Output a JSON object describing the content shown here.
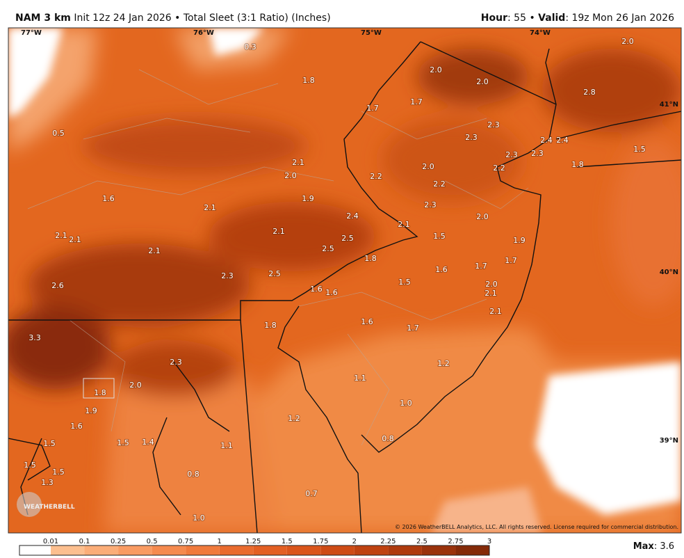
{
  "header": {
    "model": "NAM 3 km",
    "init": "Init 12z 24 Jan 2026",
    "separator": "•",
    "product": "Total Sleet (3:1 Ratio) (Inches)",
    "hour_label": "Hour",
    "hour_value": ": 55",
    "valid_label": "Valid",
    "valid_value": ": 19z Mon 26 Jan 2026"
  },
  "map": {
    "longitudes": [
      "77°W",
      "76°W",
      "75°W",
      "74°W"
    ],
    "latitudes": [
      "41°N",
      "40°N",
      "39°N"
    ],
    "labels": [
      "0.3",
      "2.0",
      "1.8",
      "2.0",
      "2.0",
      "2.8",
      "0.5",
      "1.7",
      "1.7",
      "2.3",
      "2.3",
      "2.4",
      "2.4",
      "1.5",
      "2.1",
      "2.3",
      "2.3",
      "2.0",
      "2.2",
      "1.8",
      "2.0",
      "2.2",
      "2.2",
      "1.6",
      "1.9",
      "2.1",
      "2.3",
      "2.4",
      "2.0",
      "2.1",
      "2.1",
      "2.1",
      "2.1",
      "1.5",
      "2.5",
      "1.9",
      "2.5",
      "2.1",
      "1.8",
      "1.7",
      "1.7",
      "1.6",
      "2.3",
      "2.5",
      "2.6",
      "1.5",
      "2.0",
      "1.6",
      "1.6",
      "2.1",
      "2.1",
      "1.6",
      "1.7",
      "1.8",
      "3.3",
      "2.3",
      "1.2",
      "1.1",
      "2.0",
      "1.8",
      "1.9",
      "1.0",
      "1.6",
      "1.2",
      "1.5",
      "1.5",
      "1.4",
      "1.1",
      "0.8",
      "1.5",
      "1.5",
      "1.3",
      "0.8",
      "0.7",
      "1.0"
    ]
  },
  "colorbar": {
    "ticks": [
      "0.01",
      "0.1",
      "0.25",
      "0.5",
      "0.75",
      "1",
      "1.25",
      "1.5",
      "1.75",
      "2",
      "2.25",
      "2.5",
      "2.75",
      "3"
    ],
    "colors": [
      "#ffffff",
      "#fcbf8f",
      "#fbad78",
      "#f99b62",
      "#f58a4e",
      "#f07a3c",
      "#ea6b2e",
      "#e35f23",
      "#da551b",
      "#ce4b15",
      "#bf4210",
      "#ae3a0d",
      "#9a320b",
      "#842a08"
    ]
  },
  "footer": {
    "max_label": "Max",
    "max_value": ": 3.6",
    "copyright": "© 2026 WeatherBELL Analytics, LLC. All rights reserved. License required for commercial distribution.",
    "logo": "WEATHERBELL"
  }
}
